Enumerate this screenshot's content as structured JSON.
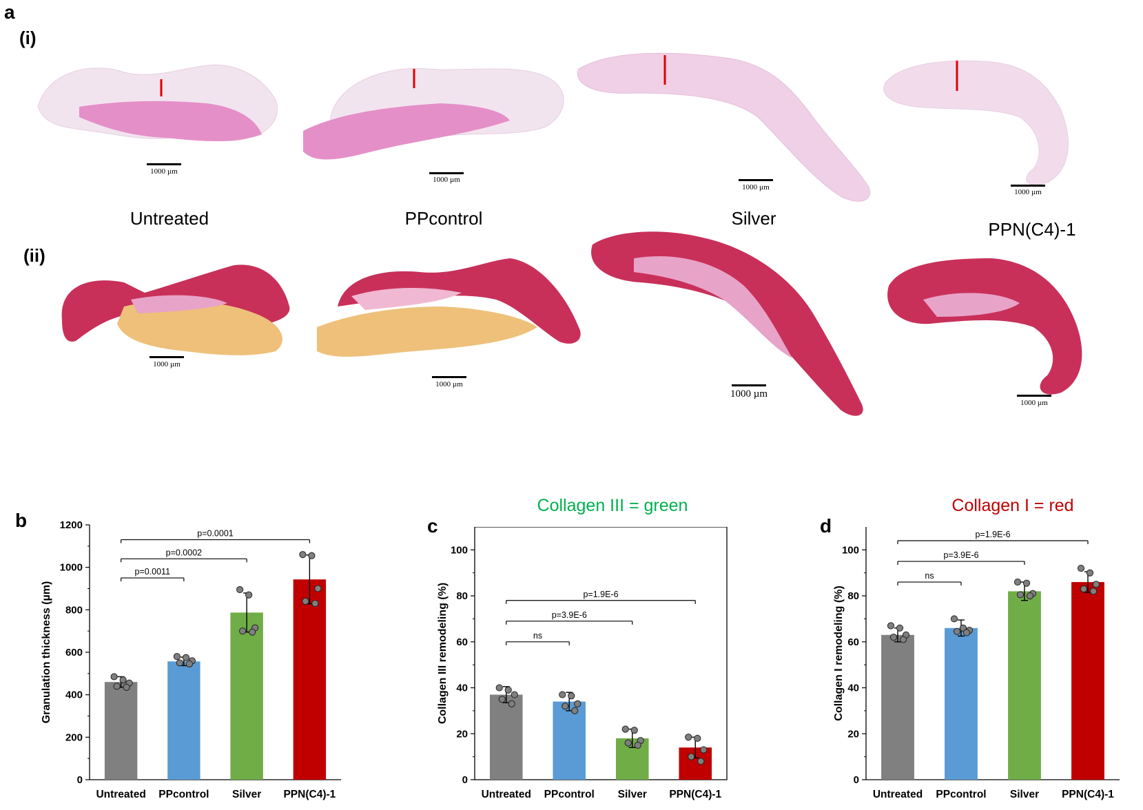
{
  "panel_a": {
    "letter": "a",
    "row1_label": "(i)",
    "row2_label": "(ii)",
    "groups": [
      "Untreated",
      "PPcontrol",
      "Silver",
      "PPN(C4)-1"
    ],
    "scale_text": "1000 µm"
  },
  "colors": {
    "untreated": "#808080",
    "ppcontrol": "#5b9bd5",
    "silver": "#70ad47",
    "ppn": "#c00000",
    "he_stain": "#e58fc8",
    "sirius_red": "#c8305a",
    "sirius_yellow": "#eec07a"
  },
  "chart_data": [
    {
      "panel": "b",
      "type": "bar",
      "title": "",
      "categories": [
        "Untreated",
        "PPcontrol",
        "Silver",
        "PPN(C4)-1"
      ],
      "values": [
        460,
        557,
        787,
        943
      ],
      "errors": [
        25,
        20,
        92,
        115
      ],
      "points": [
        [
          485,
          470,
          455,
          440,
          435
        ],
        [
          580,
          575,
          560,
          550,
          545
        ],
        [
          895,
          870,
          715,
          700,
          695
        ],
        [
          1060,
          1055,
          900,
          840,
          830
        ]
      ],
      "ylabel": "Granulation thickness (µm)",
      "xlabel": "",
      "ylim": [
        0,
        1200
      ],
      "yticks": [
        0,
        200,
        400,
        600,
        800,
        1000,
        1200
      ],
      "comparisons": [
        {
          "from": 0,
          "to": 1,
          "label": "p=0.0011",
          "y": 950
        },
        {
          "from": 0,
          "to": 2,
          "label": "p=0.0002",
          "y": 1040
        },
        {
          "from": 0,
          "to": 3,
          "label": "p=0.0001",
          "y": 1130
        }
      ]
    },
    {
      "panel": "c",
      "type": "bar",
      "title": "Collagen III = green",
      "categories": [
        "Untreated",
        "PPcontrol",
        "Silver",
        "PPN(C4)-1"
      ],
      "values": [
        37,
        34,
        18,
        14
      ],
      "errors": [
        3.5,
        4,
        4,
        4.5
      ],
      "points": [
        [
          40,
          39,
          37,
          35,
          33
        ],
        [
          37,
          36.5,
          33,
          32,
          30
        ],
        [
          22,
          21.5,
          17,
          16,
          15
        ],
        [
          18.5,
          18,
          13,
          10,
          8
        ]
      ],
      "ylabel": "Collagen III remodeling (%)",
      "xlabel": "",
      "ylim": [
        0,
        110
      ],
      "yticks": [
        0,
        20,
        40,
        60,
        80,
        100
      ],
      "comparisons": [
        {
          "from": 0,
          "to": 1,
          "label": "ns",
          "y": 60
        },
        {
          "from": 0,
          "to": 2,
          "label": "p=3.9E-6",
          "y": 69
        },
        {
          "from": 0,
          "to": 3,
          "label": "p=1.9E-6",
          "y": 78
        }
      ]
    },
    {
      "panel": "d",
      "type": "bar",
      "title": "Collagen I = red",
      "categories": [
        "Untreated",
        "PPcontrol",
        "Silver",
        "PPN(C4)-1"
      ],
      "values": [
        63,
        66,
        82,
        86
      ],
      "errors": [
        3,
        3.5,
        4,
        4.5
      ],
      "points": [
        [
          67,
          66,
          63,
          62,
          61
        ],
        [
          70,
          66,
          65,
          64.5,
          64
        ],
        [
          86,
          85.5,
          81,
          80.5,
          80
        ],
        [
          92,
          90,
          85,
          83,
          82
        ]
      ],
      "ylabel": "Collagen I remodeling (%)",
      "xlabel": "",
      "ylim": [
        0,
        110
      ],
      "yticks": [
        0,
        20,
        40,
        60,
        80,
        100
      ],
      "comparisons": [
        {
          "from": 0,
          "to": 1,
          "label": "ns",
          "y": 86
        },
        {
          "from": 0,
          "to": 2,
          "label": "p=3.9E-6",
          "y": 95
        },
        {
          "from": 0,
          "to": 3,
          "label": "p=1.9E-6",
          "y": 104
        }
      ]
    }
  ],
  "panel_letters": {
    "b": "b",
    "c": "c",
    "d": "d"
  }
}
